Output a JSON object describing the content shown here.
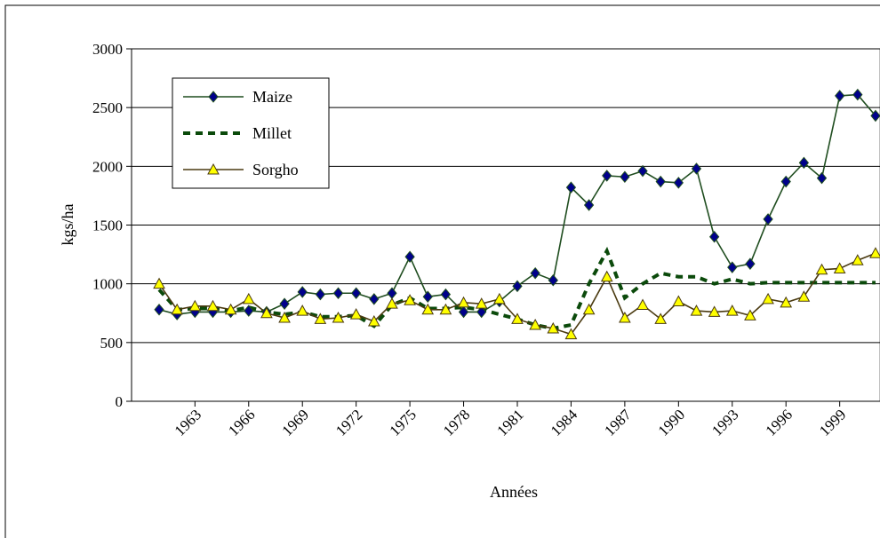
{
  "chart_data": {
    "type": "line",
    "x_label": "Années",
    "y_label": "kgs/ha",
    "x": [
      1961,
      1962,
      1963,
      1964,
      1965,
      1966,
      1967,
      1968,
      1969,
      1970,
      1971,
      1972,
      1973,
      1974,
      1975,
      1976,
      1977,
      1978,
      1979,
      1980,
      1981,
      1982,
      1983,
      1984,
      1985,
      1986,
      1987,
      1988,
      1989,
      1990,
      1991,
      1992,
      1993,
      1994,
      1995,
      1996,
      1997,
      1998,
      1999,
      2000,
      2001
    ],
    "xlim": [
      1959.46,
      2001.25
    ],
    "xticks": [
      1963,
      1966,
      1969,
      1972,
      1975,
      1978,
      1981,
      1984,
      1987,
      1990,
      1993,
      1996,
      1999
    ],
    "ylim": [
      0,
      3000
    ],
    "yticks": [
      0,
      500,
      1000,
      1500,
      2000,
      2500,
      3000
    ],
    "grid": true,
    "series": [
      {
        "name": "Maize",
        "color": "#1f4d1f",
        "marker": "diamond",
        "marker_color": "#00008b",
        "values": [
          780,
          740,
          760,
          760,
          760,
          770,
          760,
          830,
          930,
          910,
          920,
          920,
          870,
          920,
          1230,
          890,
          910,
          760,
          760,
          850,
          980,
          1090,
          1030,
          1820,
          1670,
          1920,
          1910,
          1960,
          1870,
          1860,
          1980,
          1400,
          1140,
          1170,
          1550,
          1870,
          2030,
          1900,
          2600,
          2610,
          2430
        ]
      },
      {
        "name": "Millet",
        "color": "#0b4a0b",
        "dashed": true,
        "values": [
          950,
          780,
          790,
          790,
          770,
          800,
          760,
          740,
          760,
          720,
          720,
          730,
          640,
          820,
          880,
          790,
          790,
          800,
          780,
          740,
          700,
          650,
          620,
          650,
          1000,
          1280,
          880,
          1000,
          1090,
          1060,
          1060,
          1000,
          1040,
          1000,
          1010,
          1010,
          1010,
          1010,
          1010,
          1010,
          1010
        ]
      },
      {
        "name": "Sorgho",
        "color": "#4a3a10",
        "marker": "triangle",
        "marker_color": "#ffff00",
        "values": [
          1000,
          780,
          810,
          810,
          780,
          870,
          750,
          710,
          770,
          700,
          710,
          740,
          680,
          830,
          860,
          780,
          780,
          840,
          830,
          870,
          700,
          650,
          620,
          570,
          780,
          1060,
          710,
          820,
          700,
          850,
          770,
          760,
          770,
          730,
          870,
          840,
          890,
          1120,
          1130,
          1200,
          1260
        ]
      }
    ]
  }
}
